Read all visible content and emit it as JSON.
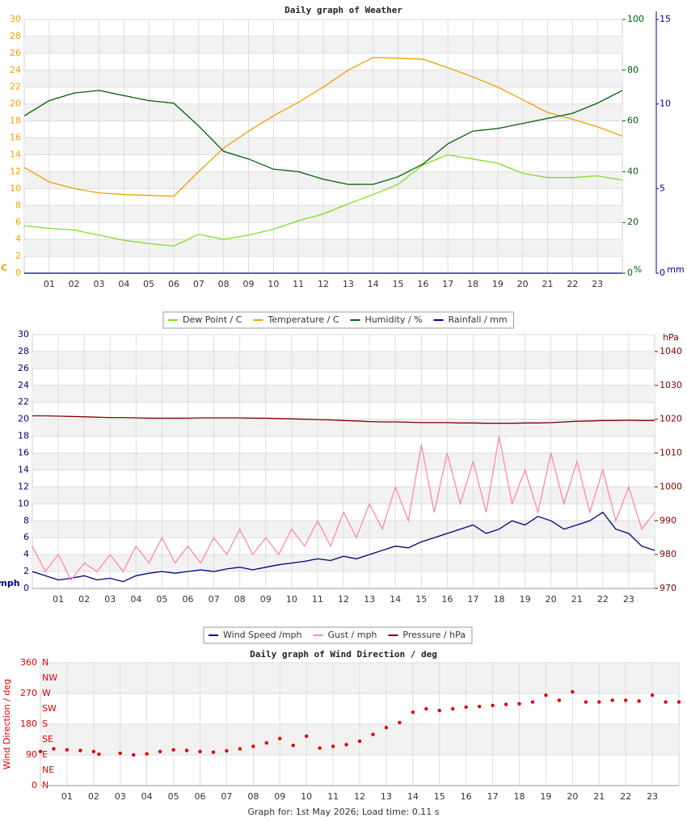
{
  "chart_data": [
    {
      "type": "line",
      "title": "Daily graph of Weather",
      "ylabel": "C",
      "y2label": "%",
      "y3label": "mm",
      "x": [
        0,
        1,
        2,
        3,
        4,
        5,
        6,
        7,
        8,
        9,
        10,
        11,
        12,
        13,
        14,
        15,
        16,
        17,
        18,
        19,
        20,
        21,
        22,
        23,
        24
      ],
      "xlim": [
        0,
        24
      ],
      "xticks": [
        {
          "value": 1,
          "label": "01"
        },
        {
          "value": 2,
          "label": "02"
        },
        {
          "value": 3,
          "label": "03"
        },
        {
          "value": 4,
          "label": "04"
        },
        {
          "value": 5,
          "label": "05"
        },
        {
          "value": 6,
          "label": "06"
        },
        {
          "value": 7,
          "label": "07"
        },
        {
          "value": 8,
          "label": "08"
        },
        {
          "value": 9,
          "label": "09"
        },
        {
          "value": 10,
          "label": "10"
        },
        {
          "value": 11,
          "label": "11"
        },
        {
          "value": 12,
          "label": "12"
        },
        {
          "value": 13,
          "label": "13"
        },
        {
          "value": 14,
          "label": "14"
        },
        {
          "value": 15,
          "label": "15"
        },
        {
          "value": 16,
          "label": "16"
        },
        {
          "value": 17,
          "label": "17"
        },
        {
          "value": 18,
          "label": "18"
        },
        {
          "value": 19,
          "label": "19"
        },
        {
          "value": 20,
          "label": "20"
        },
        {
          "value": 21,
          "label": "21"
        },
        {
          "value": 22,
          "label": "22"
        },
        {
          "value": 23,
          "label": "23"
        }
      ],
      "ylim": [
        0,
        30
      ],
      "yticks": [
        0,
        2,
        4,
        6,
        8,
        10,
        12,
        14,
        16,
        18,
        20,
        22,
        24,
        26,
        28,
        30
      ],
      "y2lim": [
        0,
        100
      ],
      "y2ticks": [
        0,
        20,
        40,
        60,
        80,
        100
      ],
      "y3lim": [
        0,
        15
      ],
      "y3ticks": [
        0,
        5,
        10,
        15
      ],
      "grid": true,
      "series": [
        {
          "name": "Dew Point / C",
          "color": "#7ee01e",
          "values": [
            5.6,
            5.3,
            5.1,
            4.5,
            3.9,
            3.5,
            3.2,
            4.6,
            4.0,
            4.5,
            5.2,
            6.2,
            7.0,
            8.2,
            9.3,
            10.5,
            12.8,
            14.0,
            13.5,
            13.0,
            11.8,
            11.3,
            11.3,
            11.5,
            11.0
          ]
        },
        {
          "name": "Temperature / C",
          "color": "#f0a000",
          "values": [
            12.5,
            10.8,
            10.0,
            9.5,
            9.3,
            9.2,
            9.1,
            12.0,
            14.8,
            16.8,
            18.6,
            20.2,
            22.0,
            24.0,
            25.5,
            25.4,
            25.3,
            24.3,
            23.2,
            22.0,
            20.5,
            19.0,
            18.2,
            17.3,
            16.2
          ]
        },
        {
          "name": "Humidity / %",
          "color": "#006000",
          "axis": "y2",
          "values": [
            62,
            68,
            71,
            72,
            70,
            68,
            67,
            58,
            48,
            45,
            41,
            40,
            37,
            35,
            35,
            38,
            43,
            51,
            56,
            57,
            59,
            61,
            63,
            67,
            72
          ]
        },
        {
          "name": "Rainfall / mm",
          "color": "#0000a0",
          "axis": "y3",
          "values": [
            0,
            0,
            0,
            0,
            0,
            0,
            0,
            0,
            0,
            0,
            0,
            0,
            0,
            0,
            0,
            0,
            0,
            0,
            0,
            0,
            0,
            0,
            0,
            0,
            0
          ]
        }
      ]
    },
    {
      "type": "line",
      "ylabel": "mph",
      "y2label": "hPa",
      "x": [
        0,
        0.5,
        1,
        1.5,
        2,
        2.5,
        3,
        3.5,
        4,
        4.5,
        5,
        5.5,
        6,
        6.5,
        7,
        7.5,
        8,
        8.5,
        9,
        9.5,
        10,
        10.5,
        11,
        11.5,
        12,
        12.5,
        13,
        13.5,
        14,
        14.5,
        15,
        15.5,
        16,
        16.5,
        17,
        17.5,
        18,
        18.5,
        19,
        19.5,
        20,
        20.5,
        21,
        21.5,
        22,
        22.5,
        23,
        23.5,
        24
      ],
      "xlim": [
        0,
        24
      ],
      "xticks": [
        {
          "value": 1,
          "label": "01"
        },
        {
          "value": 2,
          "label": "02"
        },
        {
          "value": 3,
          "label": "03"
        },
        {
          "value": 4,
          "label": "04"
        },
        {
          "value": 5,
          "label": "05"
        },
        {
          "value": 6,
          "label": "06"
        },
        {
          "value": 7,
          "label": "07"
        },
        {
          "value": 8,
          "label": "08"
        },
        {
          "value": 9,
          "label": "09"
        },
        {
          "value": 10,
          "label": "10"
        },
        {
          "value": 11,
          "label": "11"
        },
        {
          "value": 12,
          "label": "12"
        },
        {
          "value": 13,
          "label": "13"
        },
        {
          "value": 14,
          "label": "14"
        },
        {
          "value": 15,
          "label": "15"
        },
        {
          "value": 16,
          "label": "16"
        },
        {
          "value": 17,
          "label": "17"
        },
        {
          "value": 18,
          "label": "18"
        },
        {
          "value": 19,
          "label": "19"
        },
        {
          "value": 20,
          "label": "20"
        },
        {
          "value": 21,
          "label": "21"
        },
        {
          "value": 22,
          "label": "22"
        },
        {
          "value": 23,
          "label": "23"
        }
      ],
      "ylim": [
        0,
        30
      ],
      "yticks": [
        0,
        2,
        4,
        6,
        8,
        10,
        12,
        14,
        16,
        18,
        20,
        22,
        24,
        26,
        28,
        30
      ],
      "y2lim": [
        970,
        1045
      ],
      "y2ticks": [
        970,
        980,
        990,
        1000,
        1010,
        1020,
        1030,
        1040
      ],
      "grid": true,
      "series": [
        {
          "name": "Wind Speed /mph",
          "color": "#000080",
          "values": [
            2,
            1.5,
            1,
            1.2,
            1.5,
            1,
            1.2,
            0.8,
            1.5,
            1.8,
            2,
            1.8,
            2,
            2.2,
            2,
            2.3,
            2.5,
            2.2,
            2.5,
            2.8,
            3,
            3.2,
            3.5,
            3.3,
            3.8,
            3.5,
            4,
            4.5,
            5,
            4.8,
            5.5,
            6,
            6.5,
            7,
            7.5,
            6.5,
            7,
            8,
            7.5,
            8.5,
            8,
            7,
            7.5,
            8,
            9,
            7,
            6.5,
            5,
            4.5
          ]
        },
        {
          "name": "Gust / mph",
          "color": "#ff88aa",
          "values": [
            5,
            2,
            4,
            1,
            3,
            2,
            4,
            2,
            5,
            3,
            6,
            3,
            5,
            3,
            6,
            4,
            7,
            4,
            6,
            4,
            7,
            5,
            8,
            5,
            9,
            6,
            10,
            7,
            12,
            8,
            17,
            9,
            16,
            10,
            15,
            9,
            18,
            10,
            14,
            9,
            16,
            10,
            15,
            9,
            14,
            8,
            12,
            7,
            9
          ]
        },
        {
          "name": "Pressure / hPa",
          "color": "#800000",
          "axis": "y2",
          "values": [
            1021.0,
            1021.0,
            1020.9,
            1020.8,
            1020.7,
            1020.6,
            1020.5,
            1020.5,
            1020.4,
            1020.3,
            1020.3,
            1020.3,
            1020.3,
            1020.4,
            1020.4,
            1020.4,
            1020.4,
            1020.3,
            1020.3,
            1020.2,
            1020.1,
            1020.0,
            1019.9,
            1019.8,
            1019.6,
            1019.5,
            1019.3,
            1019.2,
            1019.2,
            1019.1,
            1019.0,
            1019.0,
            1019.0,
            1018.9,
            1018.9,
            1018.8,
            1018.8,
            1018.8,
            1018.9,
            1018.9,
            1019.0,
            1019.2,
            1019.4,
            1019.5,
            1019.6,
            1019.6,
            1019.7,
            1019.6,
            1019.6
          ]
        }
      ]
    },
    {
      "type": "scatter",
      "title": "Daily graph of Wind Direction / deg",
      "ylabel": "Wind Direction / deg",
      "color": "#e00000",
      "compass": [
        "N",
        "NW",
        "W",
        "SW",
        "S",
        "SE",
        "E",
        "NE",
        "N"
      ],
      "x": [
        0,
        0.5,
        1,
        1.5,
        2,
        2.2,
        3,
        3.5,
        4,
        4.5,
        5,
        5.5,
        6,
        6.5,
        7,
        7.5,
        8,
        8.5,
        9,
        9.5,
        10,
        10.5,
        11,
        11.5,
        12,
        12.5,
        13,
        13.5,
        14,
        14.5,
        15,
        15.5,
        16,
        16.5,
        17,
        17.5,
        18,
        18.5,
        19,
        19.5,
        20,
        20.5,
        21,
        21.5,
        22,
        22.5,
        23,
        23.5,
        24
      ],
      "values": [
        100,
        108,
        105,
        103,
        100,
        92,
        95,
        90,
        93,
        100,
        105,
        103,
        100,
        98,
        102,
        108,
        115,
        125,
        138,
        118,
        145,
        110,
        115,
        120,
        130,
        150,
        170,
        185,
        215,
        225,
        220,
        225,
        230,
        232,
        235,
        238,
        240,
        245,
        265,
        250,
        275,
        245,
        245,
        250,
        250,
        248,
        265,
        245,
        245
      ],
      "xlim": [
        0,
        24
      ],
      "xticks": [
        {
          "value": 1,
          "label": "01"
        },
        {
          "value": 2,
          "label": "02"
        },
        {
          "value": 3,
          "label": "03"
        },
        {
          "value": 4,
          "label": "04"
        },
        {
          "value": 5,
          "label": "05"
        },
        {
          "value": 6,
          "label": "06"
        },
        {
          "value": 7,
          "label": "07"
        },
        {
          "value": 8,
          "label": "08"
        },
        {
          "value": 9,
          "label": "09"
        },
        {
          "value": 10,
          "label": "10"
        },
        {
          "value": 11,
          "label": "11"
        },
        {
          "value": 12,
          "label": "12"
        },
        {
          "value": 13,
          "label": "13"
        },
        {
          "value": 14,
          "label": "14"
        },
        {
          "value": 15,
          "label": "15"
        },
        {
          "value": 16,
          "label": "16"
        },
        {
          "value": 17,
          "label": "17"
        },
        {
          "value": 18,
          "label": "18"
        },
        {
          "value": 19,
          "label": "19"
        },
        {
          "value": 20,
          "label": "20"
        },
        {
          "value": 21,
          "label": "21"
        },
        {
          "value": 22,
          "label": "22"
        },
        {
          "value": 23,
          "label": "23"
        }
      ],
      "ylim": [
        0,
        360
      ],
      "yticks": [
        0,
        90,
        180,
        270,
        360
      ],
      "grid": true
    }
  ],
  "footer": "Graph for: 1st May 2026; Load time: 0.11 s"
}
